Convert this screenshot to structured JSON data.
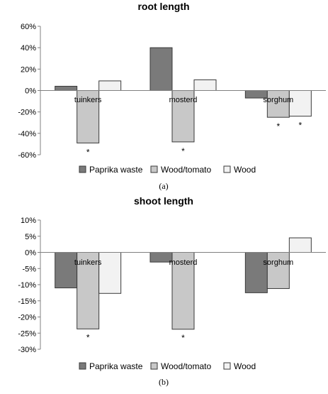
{
  "chart_data": [
    {
      "type": "bar",
      "title": "root length",
      "caption": "(a)",
      "categories": [
        "tuinkers",
        "mosterd",
        "sorghum"
      ],
      "ylim": [
        -60,
        60
      ],
      "yticks": [
        -60,
        -40,
        -20,
        0,
        20,
        40,
        60
      ],
      "tick_suffix": "%",
      "grid": false,
      "legend_position": "bottom",
      "series": [
        {
          "name": "Paprika waste",
          "values": [
            4,
            40,
            -7
          ]
        },
        {
          "name": "Wood/tomato",
          "values": [
            -49,
            -48,
            -25
          ]
        },
        {
          "name": "Wood",
          "values": [
            9,
            10,
            -24
          ]
        }
      ],
      "annotations": [
        {
          "text": "*",
          "category": "tuinkers",
          "series": "Wood/tomato"
        },
        {
          "text": "*",
          "category": "mosterd",
          "series": "Wood/tomato"
        },
        {
          "text": "*",
          "category": "sorghum",
          "series": "Wood/tomato"
        },
        {
          "text": "*",
          "category": "sorghum",
          "series": "Wood"
        }
      ]
    },
    {
      "type": "bar",
      "title": "shoot length",
      "caption": "(b)",
      "categories": [
        "tuinkers",
        "mosterd",
        "sorghum"
      ],
      "ylim": [
        -30,
        10
      ],
      "yticks": [
        -30,
        -25,
        -20,
        -15,
        -10,
        -5,
        0,
        5,
        10
      ],
      "tick_suffix": "%",
      "grid": false,
      "legend_position": "bottom",
      "series": [
        {
          "name": "Paprika waste",
          "values": [
            -11,
            -3,
            -12.5
          ]
        },
        {
          "name": "Wood/tomato",
          "values": [
            -23.7,
            -23.8,
            -11.2
          ]
        },
        {
          "name": "Wood",
          "values": [
            -12.7,
            0,
            4.5
          ]
        }
      ],
      "annotations": [
        {
          "text": "*",
          "category": "tuinkers",
          "series": "Wood/tomato"
        },
        {
          "text": "*",
          "category": "mosterd",
          "series": "Wood/tomato"
        }
      ]
    }
  ],
  "colors": {
    "Paprika waste": "#7a7a7a",
    "Wood/tomato": "#c8c8c8",
    "Wood": "#f2f2f2",
    "stroke": "#3a3a3a",
    "axis": "#808080",
    "text": "#000000"
  }
}
